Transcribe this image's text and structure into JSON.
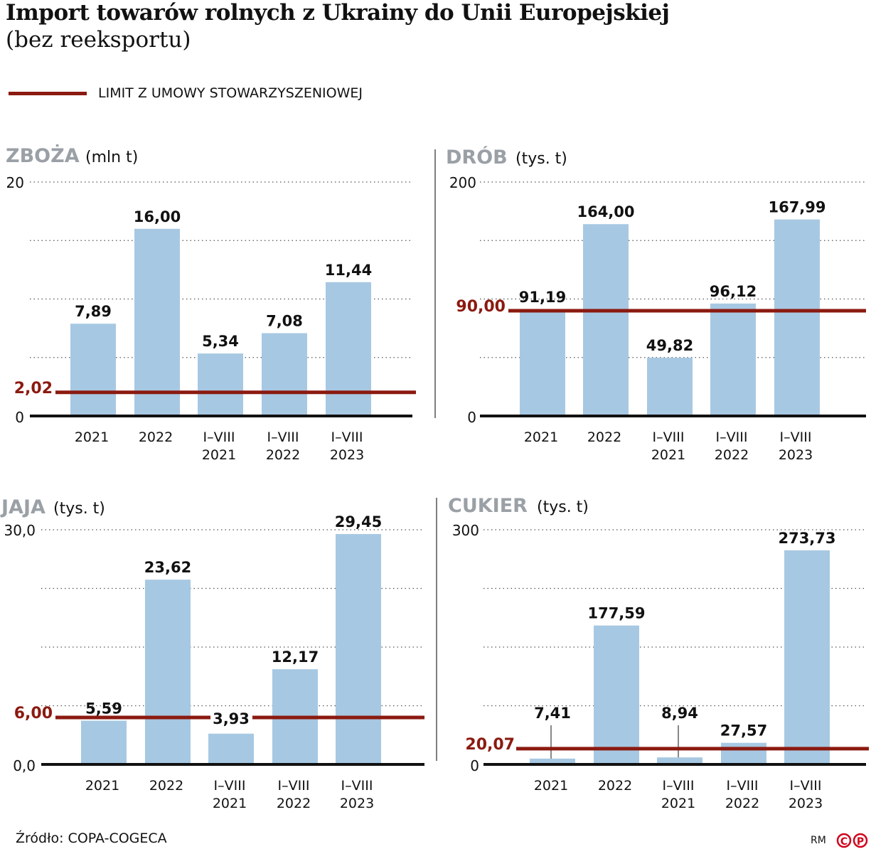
{
  "title": "Import towarów rolnych z Ukrainy do Unii Europejskiej",
  "subtitle": "(bez reeksportu)",
  "legend": {
    "label": "LIMIT Z UMOWY STOWARZYSZENIOWEJ",
    "color": "#8b1a10"
  },
  "source": "Źródło: COPA-COGECA",
  "credit": "RM",
  "logo": "CP",
  "colors": {
    "bar": "#a7c8e2",
    "limit": "#8b1a10",
    "panel_title": "#9aa0a6"
  },
  "chart_data": [
    {
      "type": "bar",
      "title": "ZBOŻA",
      "unit": "(mln t)",
      "ylim": [
        0,
        20
      ],
      "tick_labels": [
        "0",
        "20"
      ],
      "categories": [
        [
          "2021"
        ],
        [
          "2022"
        ],
        [
          "I–VIII",
          "2021"
        ],
        [
          "I–VIII",
          "2022"
        ],
        [
          "I–VIII",
          "2023"
        ]
      ],
      "values": [
        7.89,
        16.0,
        5.34,
        7.08,
        11.44
      ],
      "value_labels": [
        "7,89",
        "16,00",
        "5,34",
        "7,08",
        "11,44"
      ],
      "limit": 2.02,
      "limit_label": "2,02",
      "grid": true
    },
    {
      "type": "bar",
      "title": "DRÓB",
      "unit": "(tys. t)",
      "ylim": [
        0,
        200
      ],
      "tick_labels": [
        "0",
        "200"
      ],
      "categories": [
        [
          "2021"
        ],
        [
          "2022"
        ],
        [
          "I–VIII",
          "2021"
        ],
        [
          "I–VIII",
          "2022"
        ],
        [
          "I–VIII",
          "2023"
        ]
      ],
      "values": [
        91.19,
        164.0,
        49.82,
        96.12,
        167.99
      ],
      "value_labels": [
        "91,19",
        "164,00",
        "49,82",
        "96,12",
        "167,99"
      ],
      "limit": 90.0,
      "limit_label": "90,00",
      "grid": true
    },
    {
      "type": "bar",
      "title": "JAJA",
      "unit": "(tys. t)",
      "ylim": [
        0,
        30
      ],
      "tick_labels": [
        "0,0",
        "30,0"
      ],
      "categories": [
        [
          "2021"
        ],
        [
          "2022"
        ],
        [
          "I–VIII",
          "2021"
        ],
        [
          "I–VIII",
          "2022"
        ],
        [
          "I–VIII",
          "2023"
        ]
      ],
      "values": [
        5.59,
        23.62,
        3.93,
        12.17,
        29.45
      ],
      "value_labels": [
        "5,59",
        "23,62",
        "3,93",
        "12,17",
        "29,45"
      ],
      "limit": 6.0,
      "limit_label": "6,00",
      "grid": true
    },
    {
      "type": "bar",
      "title": "CUKIER",
      "unit": "(tys. t)",
      "ylim": [
        0,
        300
      ],
      "tick_labels": [
        "0",
        "300"
      ],
      "categories": [
        [
          "2021"
        ],
        [
          "2022"
        ],
        [
          "I–VIII",
          "2021"
        ],
        [
          "I–VIII",
          "2022"
        ],
        [
          "I–VIII",
          "2023"
        ]
      ],
      "values": [
        7.41,
        177.59,
        8.94,
        27.57,
        273.73
      ],
      "value_labels": [
        "7,41",
        "177,59",
        "8,94",
        "27,57",
        "273,73"
      ],
      "limit": 20.07,
      "limit_label": "20,07",
      "grid": true
    }
  ]
}
